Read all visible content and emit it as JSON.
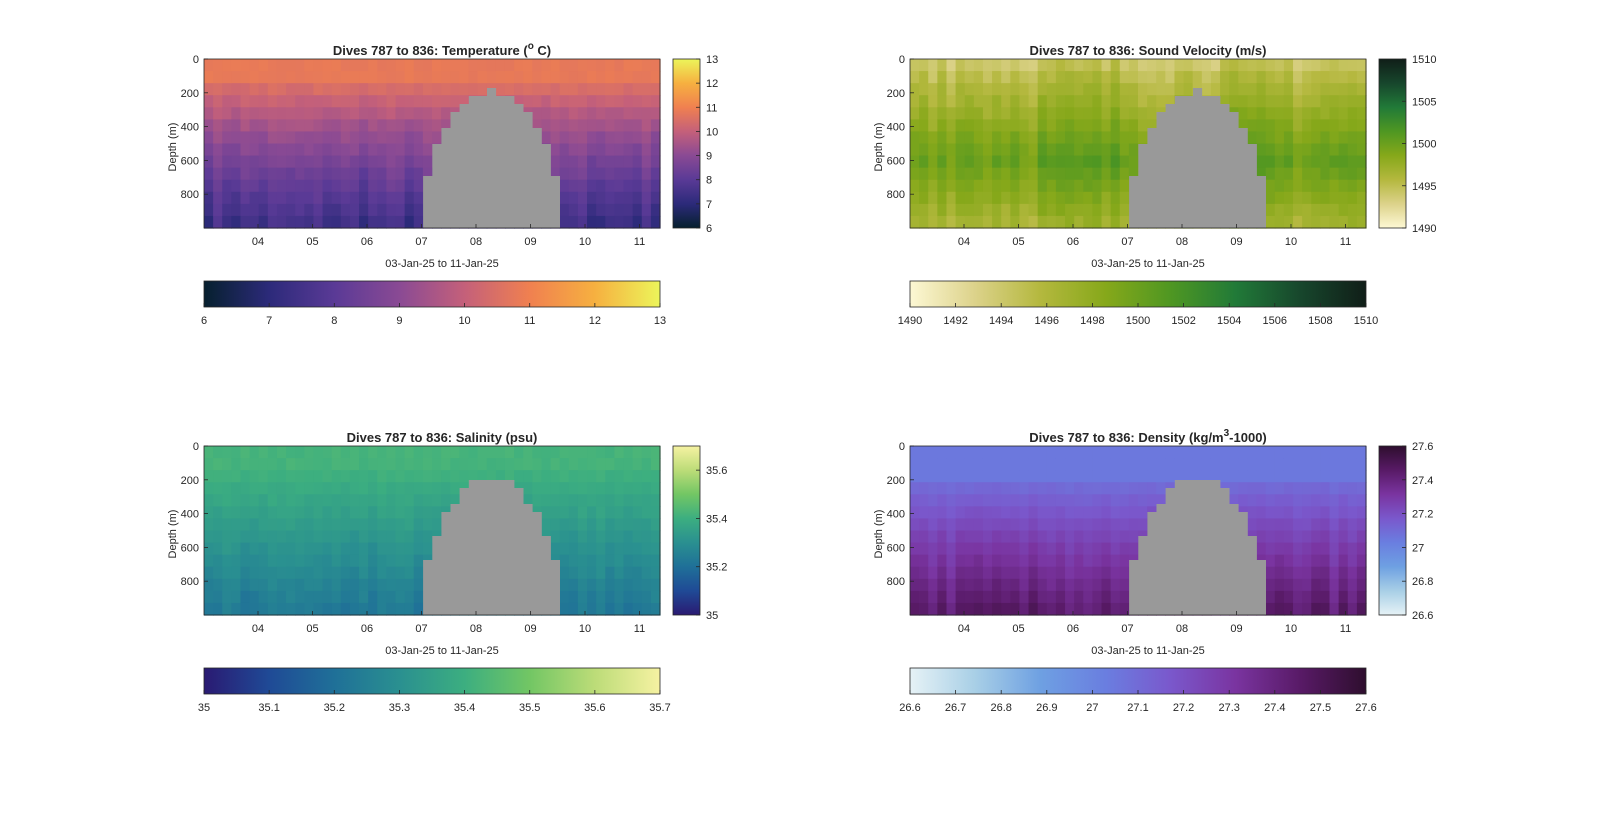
{
  "chart_data": [
    {
      "type": "heatmap",
      "key": "temp",
      "title": "Dives 787 to 836: Temperature (°C)",
      "title_parts": [
        "Dives 787 to 836: Temperature (",
        "o",
        " C)"
      ],
      "xlabel": "03-Jan-25 to 11-Jan-25",
      "ylabel": "Depth (m)",
      "x_ticks": [
        "04",
        "05",
        "06",
        "07",
        "08",
        "09",
        "10",
        "11"
      ],
      "y_ticks": [
        "0",
        "200",
        "400",
        "600",
        "800"
      ],
      "ylim": [
        0,
        1000
      ],
      "clim": [
        6,
        13
      ],
      "colorbar_ticks": [
        "6",
        "7",
        "8",
        "9",
        "10",
        "11",
        "12",
        "13"
      ],
      "horizontal_colorbar_ticks": [
        "6",
        "7",
        "8",
        "9",
        "10",
        "11",
        "12",
        "13"
      ],
      "colormap": [
        "#06202e",
        "#2c2a7a",
        "#5a3a96",
        "#8a4a94",
        "#c4607a",
        "#f08050",
        "#f6b040",
        "#ecf55a"
      ],
      "surface_value": 10.8,
      "deep_value": 7.3,
      "no_data_color": "#999999"
    },
    {
      "type": "heatmap",
      "key": "sound",
      "title": "Dives 787 to 836: Sound Velocity (m/s)",
      "title_parts": [
        "Dives 787 to 836: Sound Velocity (m/s)",
        "",
        ""
      ],
      "xlabel": "03-Jan-25 to 11-Jan-25",
      "ylabel": "Depth (m)",
      "x_ticks": [
        "04",
        "05",
        "06",
        "07",
        "08",
        "09",
        "10",
        "11"
      ],
      "y_ticks": [
        "0",
        "200",
        "400",
        "600",
        "800"
      ],
      "ylim": [
        0,
        1000
      ],
      "clim": [
        1490,
        1510
      ],
      "colorbar_ticks": [
        "1490",
        "1495",
        "1500",
        "1505",
        "1510"
      ],
      "horizontal_colorbar_ticks": [
        "1490",
        "1492",
        "1494",
        "1496",
        "1498",
        "1500",
        "1502",
        "1504",
        "1506",
        "1508",
        "1510"
      ],
      "colormap": [
        "#fdf8d4",
        "#dcd28a",
        "#b4b83e",
        "#86a81a",
        "#4f9722",
        "#217a38",
        "#17462c",
        "#101e18"
      ],
      "surface_value": 1495.5,
      "deep_value": 1496.5,
      "mid_value": 1500.5,
      "no_data_color": "#999999"
    },
    {
      "type": "heatmap",
      "key": "sal",
      "title": "Dives 787 to 836: Salinity (psu)",
      "title_parts": [
        "Dives 787 to 836: Salinity (psu)",
        "",
        ""
      ],
      "xlabel": "03-Jan-25 to 11-Jan-25",
      "ylabel": "Depth (m)",
      "x_ticks": [
        "04",
        "05",
        "06",
        "07",
        "08",
        "09",
        "10",
        "11"
      ],
      "y_ticks": [
        "0",
        "200",
        "400",
        "600",
        "800"
      ],
      "ylim": [
        0,
        1000
      ],
      "clim": [
        35,
        35.7
      ],
      "colorbar_ticks": [
        "35",
        "35.2",
        "35.4",
        "35.6"
      ],
      "horizontal_colorbar_ticks": [
        "35",
        "35.1",
        "35.2",
        "35.3",
        "35.4",
        "35.5",
        "35.6",
        "35.7"
      ],
      "colormap": [
        "#2a1a72",
        "#1f4a96",
        "#1f7098",
        "#2a9090",
        "#3cae80",
        "#72c664",
        "#bcdc78",
        "#f6f2a2"
      ],
      "surface_value": 35.42,
      "deep_value": 35.22,
      "no_data_color": "#999999"
    },
    {
      "type": "heatmap",
      "key": "dens",
      "title": "Dives 787 to 836: Density (kg/m³-1000)",
      "title_parts": [
        "Dives 787 to 836: Density (kg/m",
        "3",
        "-1000)"
      ],
      "xlabel": "03-Jan-25 to 11-Jan-25",
      "ylabel": "Depth (m)",
      "x_ticks": [
        "04",
        "05",
        "06",
        "07",
        "08",
        "09",
        "10",
        "11"
      ],
      "y_ticks": [
        "0",
        "200",
        "400",
        "600",
        "800"
      ],
      "ylim": [
        0,
        1000
      ],
      "clim": [
        26.6,
        27.6
      ],
      "colorbar_ticks": [
        "26.6",
        "26.8",
        "27",
        "27.2",
        "27.4",
        "27.6"
      ],
      "horizontal_colorbar_ticks": [
        "26.6",
        "26.7",
        "26.8",
        "26.9",
        "27",
        "27.1",
        "27.2",
        "27.3",
        "27.4",
        "27.5",
        "27.6"
      ],
      "colormap": [
        "#e6f2f6",
        "#a8cfe6",
        "#6ea0e2",
        "#6a7ee0",
        "#7a58cc",
        "#7a34a0",
        "#581a66",
        "#2e0e2e"
      ],
      "surface_value": 27.05,
      "deep_value": 27.45,
      "no_data_color": "#999999"
    }
  ]
}
